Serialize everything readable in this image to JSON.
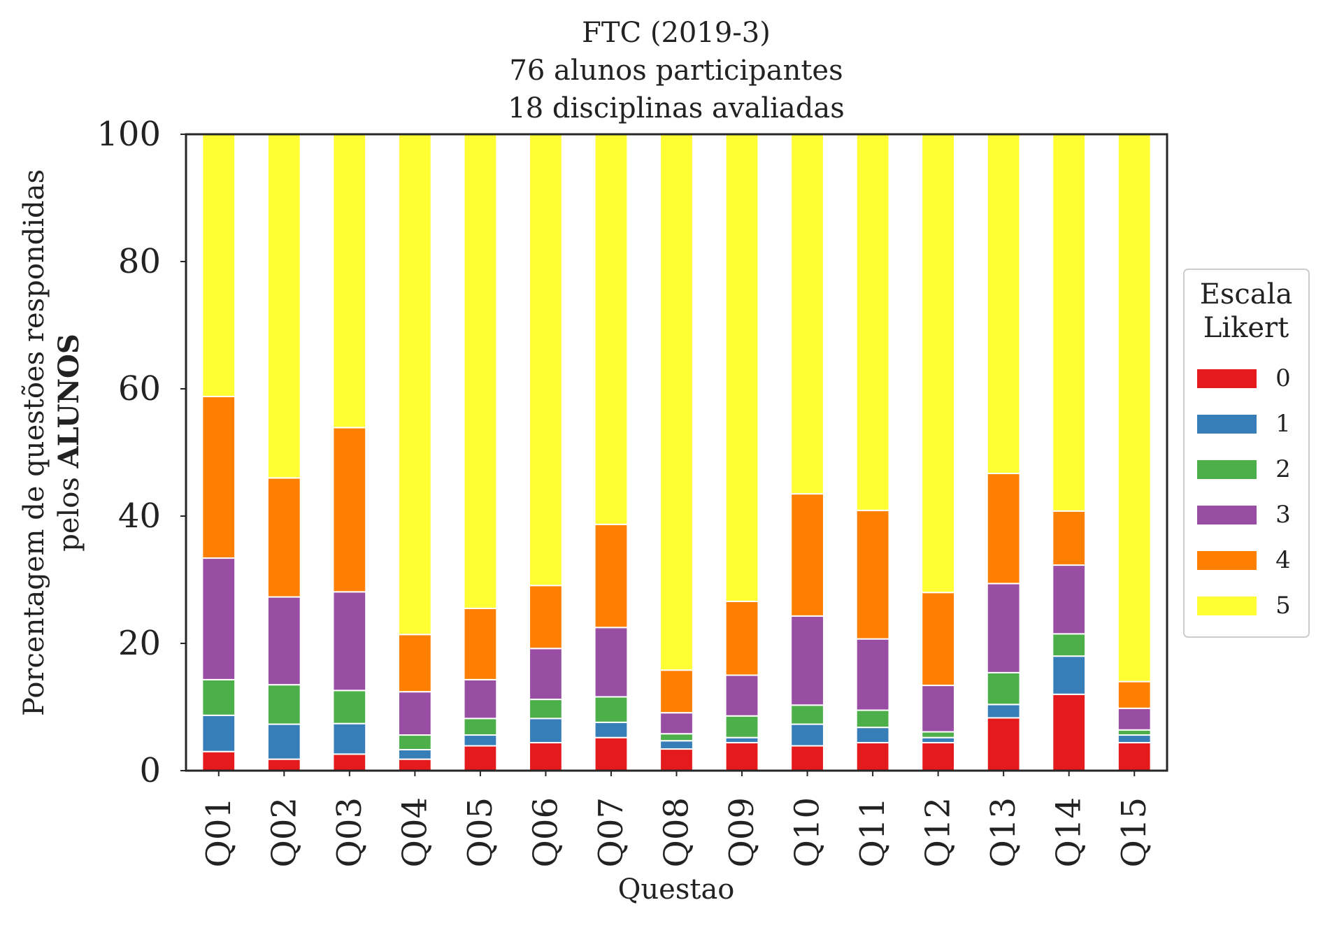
{
  "chart_data": {
    "type": "bar",
    "stacked": true,
    "title_lines": [
      "FTC (2019-3)",
      "76 alunos participantes",
      "18 disciplinas avaliadas"
    ],
    "xlabel": "Questao",
    "ylabel_line1": "Porcentagem de questões respondidas",
    "ylabel_line2_prefix": "pelos ",
    "ylabel_line2_bold": "ALUNOS",
    "ylim": [
      0,
      100
    ],
    "yticks": [
      "0",
      "20",
      "40",
      "60",
      "80",
      "100"
    ],
    "grid": false,
    "legend": {
      "title_lines": [
        "Escala",
        "Likert"
      ],
      "placement": "center-right outside"
    },
    "categories": [
      "Q01",
      "Q02",
      "Q03",
      "Q04",
      "Q05",
      "Q06",
      "Q07",
      "Q08",
      "Q09",
      "Q10",
      "Q11",
      "Q12",
      "Q13",
      "Q14",
      "Q15"
    ],
    "series": [
      {
        "name": "0",
        "color": "#e41a1c",
        "values": [
          3.0,
          1.8,
          2.6,
          1.8,
          3.9,
          4.4,
          5.2,
          3.4,
          4.4,
          3.9,
          4.4,
          4.4,
          8.3,
          12.0,
          4.4
        ]
      },
      {
        "name": "1",
        "color": "#377eb8",
        "values": [
          5.7,
          5.5,
          4.8,
          1.5,
          1.7,
          3.8,
          2.4,
          1.3,
          0.8,
          3.4,
          2.4,
          0.8,
          2.1,
          6.0,
          1.2
        ]
      },
      {
        "name": "2",
        "color": "#4daf4a",
        "values": [
          5.6,
          6.2,
          5.2,
          2.3,
          2.6,
          3.0,
          4.0,
          1.1,
          3.4,
          3.0,
          2.7,
          0.9,
          5.0,
          3.5,
          0.8
        ]
      },
      {
        "name": "3",
        "color": "#984ea3",
        "values": [
          19.1,
          13.8,
          15.5,
          6.8,
          6.1,
          8.0,
          10.9,
          3.3,
          6.4,
          14.0,
          11.2,
          7.3,
          14.0,
          10.8,
          3.4
        ]
      },
      {
        "name": "4",
        "color": "#ff7f00",
        "values": [
          25.4,
          18.7,
          25.8,
          9.0,
          11.2,
          9.9,
          16.2,
          6.7,
          11.6,
          19.2,
          20.2,
          14.6,
          17.3,
          8.5,
          4.2
        ]
      },
      {
        "name": "5",
        "color": "#ffff33",
        "values": [
          41.2,
          54.0,
          46.1,
          78.6,
          74.5,
          70.9,
          61.3,
          84.2,
          73.4,
          56.5,
          59.1,
          72.0,
          53.3,
          59.2,
          86.0
        ]
      }
    ]
  }
}
